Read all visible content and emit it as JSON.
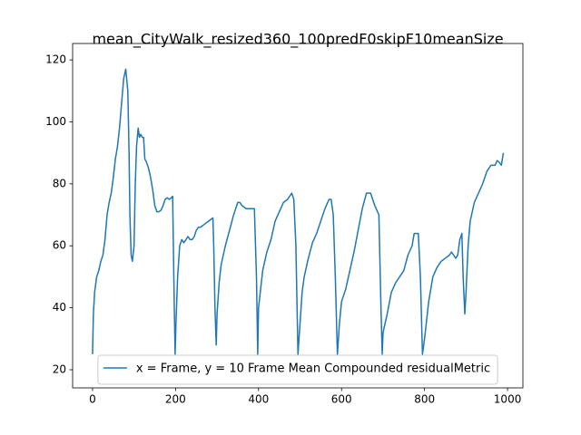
{
  "chart_data": {
    "type": "line",
    "title": "mean_CityWalk_resized360_100predF0skipF10meanSize",
    "x": [
      0,
      2,
      5,
      10,
      15,
      20,
      25,
      30,
      35,
      40,
      45,
      50,
      55,
      60,
      65,
      70,
      75,
      80,
      85,
      88,
      90,
      93,
      96,
      100,
      103,
      106,
      110,
      113,
      116,
      120,
      123,
      126,
      130,
      135,
      140,
      145,
      150,
      155,
      160,
      165,
      170,
      175,
      180,
      185,
      190,
      193,
      197,
      199,
      201,
      205,
      210,
      215,
      220,
      225,
      230,
      235,
      240,
      245,
      250,
      255,
      260,
      270,
      280,
      290,
      292,
      295,
      298,
      300,
      305,
      310,
      320,
      330,
      340,
      350,
      355,
      360,
      365,
      370,
      380,
      390,
      395,
      398,
      400,
      405,
      410,
      420,
      430,
      440,
      450,
      460,
      470,
      480,
      485,
      490,
      495,
      500,
      505,
      510,
      520,
      530,
      540,
      550,
      560,
      570,
      575,
      580,
      585,
      590,
      595,
      600,
      610,
      620,
      630,
      640,
      650,
      660,
      670,
      680,
      690,
      695,
      698,
      700,
      710,
      720,
      730,
      740,
      750,
      760,
      770,
      775,
      785,
      790,
      795,
      800,
      810,
      820,
      830,
      840,
      850,
      860,
      865,
      870,
      875,
      880,
      885,
      890,
      893,
      897,
      900,
      905,
      910,
      920,
      930,
      940,
      950,
      960,
      970,
      975,
      980,
      985,
      990
    ],
    "series": [
      {
        "name": "x = Frame, y = 10 Frame Mean Compounded residualMetric",
        "color": "#1f77b4",
        "values": [
          25,
          38,
          45,
          50,
          52,
          55,
          57,
          62,
          70,
          74,
          77,
          82,
          88,
          92,
          98,
          106,
          114,
          117,
          110,
          90,
          70,
          57,
          55,
          60,
          80,
          92,
          98,
          95,
          96,
          95,
          95,
          88,
          87,
          85,
          82,
          78,
          73,
          71,
          71,
          71.5,
          73,
          75,
          75.5,
          75,
          75.5,
          76,
          40,
          25,
          35,
          50,
          60,
          62,
          61,
          62,
          63,
          62,
          62,
          63,
          65,
          66,
          66,
          67,
          68,
          69,
          60,
          40,
          28,
          38,
          48,
          54,
          60,
          65,
          70,
          74,
          74,
          73,
          72.5,
          72,
          72,
          72,
          50,
          25,
          40,
          46,
          52,
          58,
          62,
          68,
          71,
          74,
          75,
          77,
          75,
          60,
          25,
          35,
          45,
          50,
          56,
          61,
          64,
          68,
          72,
          75,
          75,
          70,
          50,
          25,
          35,
          42,
          46,
          52,
          58,
          65,
          72,
          77,
          77,
          73,
          70,
          40,
          25,
          32,
          38,
          45,
          48,
          50,
          52,
          57,
          60,
          64,
          64,
          50,
          25,
          30,
          42,
          50,
          53,
          55,
          56,
          57,
          58,
          57,
          56,
          57,
          62,
          64,
          50,
          38,
          45,
          60,
          68,
          74,
          77,
          80,
          84,
          86,
          86,
          87.5,
          87,
          86,
          90
        ]
      }
    ],
    "xlim": [
      -48,
      1037
    ],
    "ylim": [
      14.15,
      125.3
    ],
    "xticks": [
      0,
      200,
      400,
      600,
      800,
      1000
    ],
    "yticks": [
      20,
      40,
      60,
      80,
      100,
      120
    ],
    "legend": "lower center"
  }
}
